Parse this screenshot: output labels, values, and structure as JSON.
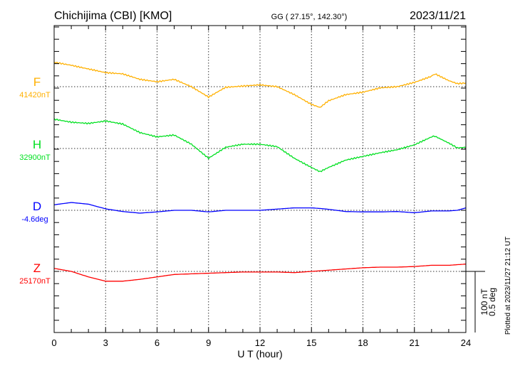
{
  "chart_data": {
    "type": "line",
    "title": "Chichijima (CBI)  [KMO]",
    "coords": "GG ( 27.15°, 142.30°)",
    "date": "2023/11/21",
    "xlabel": "U T (hour)",
    "xlim": [
      0,
      24
    ],
    "xticks": [
      "0",
      "3",
      "6",
      "9",
      "12",
      "15",
      "18",
      "21",
      "24"
    ],
    "grid": true,
    "scale_bar": {
      "nT_label": "100 nT",
      "deg_label": "0.5 deg",
      "nT": 100,
      "deg": 0.5
    },
    "footer": "Plotted at 2023/11/27 21:12 UT",
    "x": [
      0,
      1,
      2,
      3,
      4,
      5,
      6,
      7,
      8,
      9,
      10,
      11,
      12,
      13,
      14,
      15,
      15.5,
      16,
      17,
      18,
      19,
      20,
      21,
      22,
      22.2,
      23,
      23.5,
      24
    ],
    "series": [
      {
        "name": "F",
        "baseline_label": "41420nT",
        "baseline": 41420,
        "unit": "nT",
        "color": "#ffb000",
        "values": [
          41460,
          41455,
          41449,
          41443,
          41441,
          41432,
          41428,
          41432,
          41420,
          41403,
          41419,
          41421,
          41423,
          41420,
          41407,
          41391,
          41386,
          41397,
          41407,
          41411,
          41418,
          41420,
          41427,
          41437,
          41441,
          41430,
          41425,
          41426
        ]
      },
      {
        "name": "H",
        "baseline_label": "32900nT",
        "baseline": 32900,
        "unit": "nT",
        "color": "#00e020",
        "values": [
          32948,
          32943,
          32941,
          32945,
          32940,
          32926,
          32919,
          32922,
          32907,
          32884,
          32902,
          32907,
          32907,
          32903,
          32884,
          32869,
          32862,
          32869,
          32881,
          32887,
          32893,
          32898,
          32906,
          32919,
          32920,
          32909,
          32901,
          32902
        ]
      },
      {
        "name": "D",
        "baseline_label": "-4.6deg",
        "baseline": -4.6,
        "unit": "deg",
        "color": "#0000ff",
        "values": [
          -4.555,
          -4.536,
          -4.55,
          -4.588,
          -4.61,
          -4.623,
          -4.613,
          -4.6,
          -4.6,
          -4.613,
          -4.6,
          -4.6,
          -4.6,
          -4.59,
          -4.58,
          -4.58,
          -4.585,
          -4.592,
          -4.61,
          -4.613,
          -4.613,
          -4.61,
          -4.62,
          -4.605,
          -4.605,
          -4.605,
          -4.6,
          -4.58
        ]
      },
      {
        "name": "Z",
        "baseline_label": "25170nT",
        "baseline": 25170,
        "unit": "nT",
        "color": "#ff0000",
        "values": [
          25175,
          25170,
          25161,
          25154,
          25154,
          25157,
          25161,
          25165,
          25166,
          25167,
          25168,
          25169,
          25169,
          25169,
          25168,
          25170,
          25171,
          25172,
          25174,
          25176,
          25177,
          25177,
          25178,
          25180,
          25180,
          25180,
          25181,
          25182
        ]
      }
    ]
  }
}
